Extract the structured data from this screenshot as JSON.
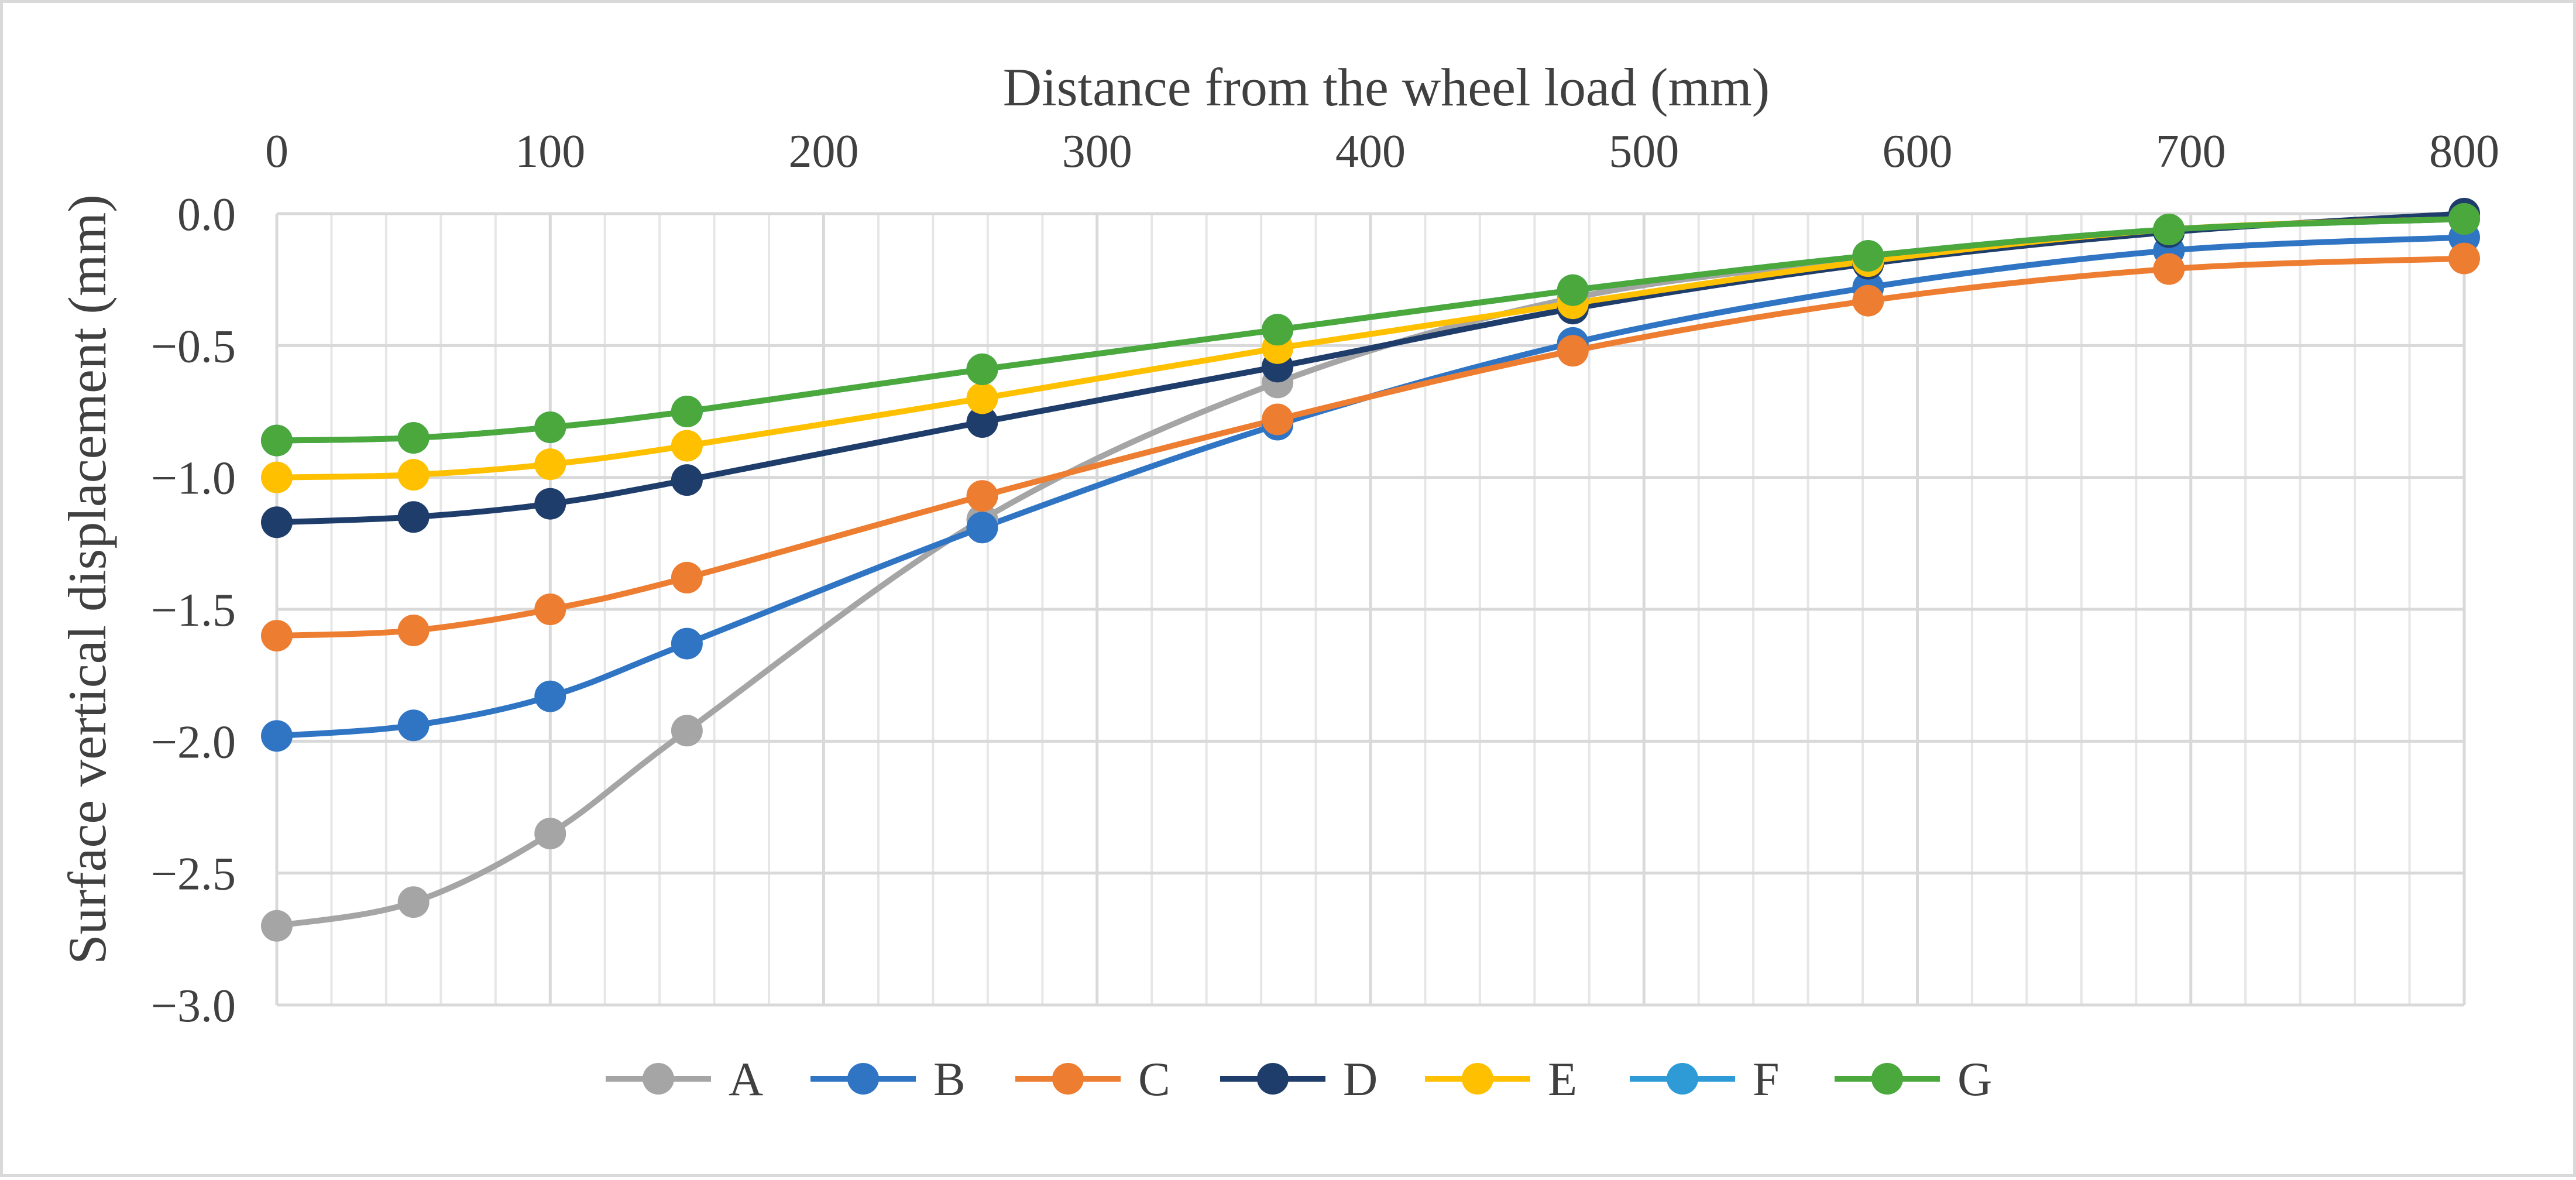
{
  "chart_data": {
    "type": "line",
    "title": "",
    "xlabel": "Distance from the wheel load (mm)",
    "ylabel": "Surface vertical displacement (mm)",
    "x_axis_position": "top",
    "xlim": [
      0,
      800
    ],
    "ylim": [
      -3.0,
      0.0
    ],
    "x_major_ticks": [
      0,
      100,
      200,
      300,
      400,
      500,
      600,
      700,
      800
    ],
    "x_tick_labels": [
      "0",
      "100",
      "200",
      "300",
      "400",
      "500",
      "600",
      "700",
      "800"
    ],
    "y_major_ticks": [
      0.0,
      -0.5,
      -1.0,
      -1.5,
      -2.0,
      -2.5,
      -3.0
    ],
    "y_tick_labels": [
      "0.0",
      "−0.5",
      "−1.0",
      "−1.5",
      "−2.0",
      "−2.5",
      "−3.0"
    ],
    "grid": "on",
    "legend_position": "bottom",
    "x": [
      0,
      50,
      100,
      150,
      258,
      366,
      474,
      582,
      692,
      800
    ],
    "series": [
      {
        "name": "A",
        "color": "#a5a5a5",
        "values": [
          -2.7,
          -2.61,
          -2.35,
          -1.96,
          -1.16,
          -0.64,
          -0.32,
          -0.17,
          -0.06,
          -0.02
        ]
      },
      {
        "name": "B",
        "color": "#2f75c4",
        "values": [
          -1.98,
          -1.94,
          -1.83,
          -1.63,
          -1.19,
          -0.8,
          -0.49,
          -0.28,
          -0.14,
          -0.09
        ]
      },
      {
        "name": "C",
        "color": "#ed7d31",
        "values": [
          -1.6,
          -1.58,
          -1.5,
          -1.38,
          -1.07,
          -0.78,
          -0.52,
          -0.33,
          -0.21,
          -0.17
        ]
      },
      {
        "name": "D",
        "color": "#1f3d6b",
        "values": [
          -1.17,
          -1.15,
          -1.1,
          -1.01,
          -0.79,
          -0.58,
          -0.36,
          -0.19,
          -0.07,
          0.0
        ]
      },
      {
        "name": "E",
        "color": "#ffc000",
        "values": [
          -1.0,
          -0.99,
          -0.95,
          -0.88,
          -0.7,
          -0.51,
          -0.34,
          -0.18,
          -0.06,
          -0.02
        ]
      },
      {
        "name": "F",
        "color": "#2e9bd6",
        "values": [
          -0.86,
          -0.85,
          -0.81,
          -0.75,
          -0.59,
          -0.44,
          -0.29,
          -0.16,
          -0.06,
          -0.02
        ]
      },
      {
        "name": "G",
        "color": "#4aa83c",
        "values": [
          -0.86,
          -0.85,
          -0.81,
          -0.75,
          -0.59,
          -0.44,
          -0.29,
          -0.16,
          -0.06,
          -0.02
        ]
      }
    ]
  }
}
